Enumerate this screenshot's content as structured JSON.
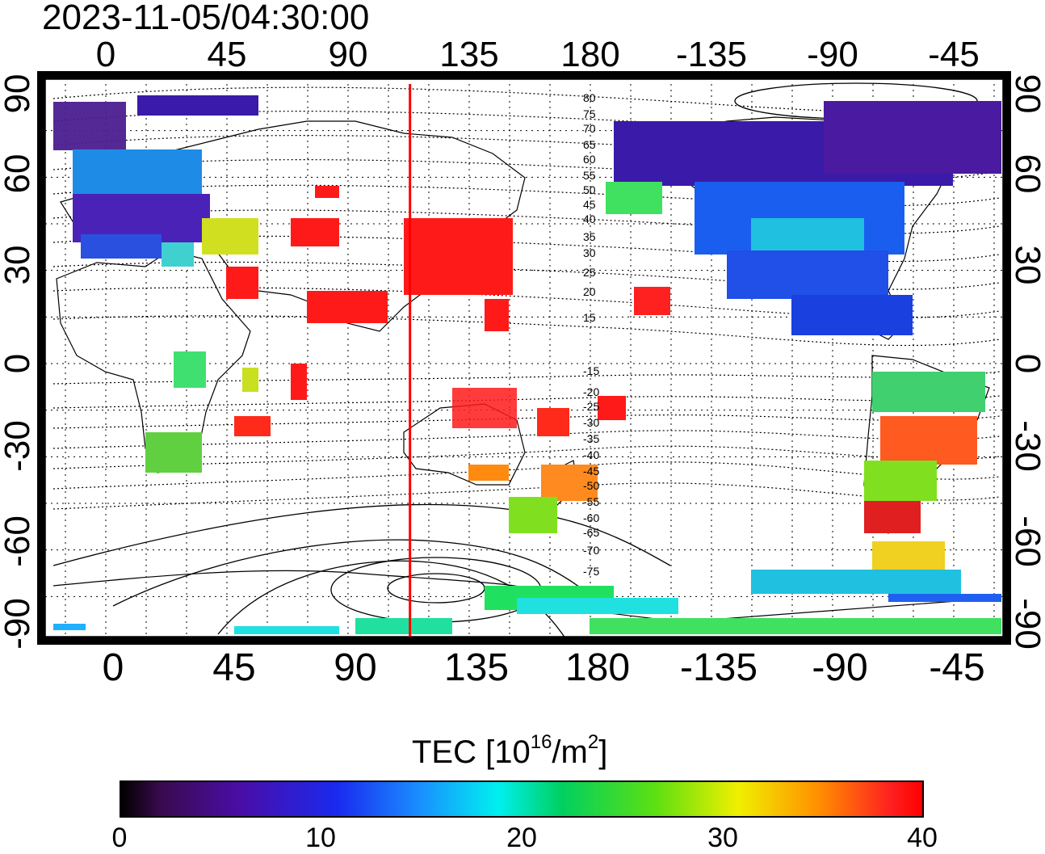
{
  "timestamp": "2023-11-05/04:30:00",
  "axes": {
    "top_lon_labels": [
      "0",
      "45",
      "90",
      "135",
      "180",
      "-135",
      "-90",
      "-45"
    ],
    "bottom_lon_labels": [
      "0",
      "45",
      "90",
      "135",
      "180",
      "-135",
      "-90",
      "-45"
    ],
    "left_lat_labels": [
      "90",
      "60",
      "30",
      "0",
      "-30",
      "-60",
      "-90"
    ],
    "right_lat_labels": [
      "90",
      "60",
      "30",
      "0",
      "-30",
      "-60",
      "-90"
    ]
  },
  "contour_labels": [
    "80",
    "75",
    "70",
    "65",
    "60",
    "55",
    "50",
    "45",
    "40",
    "35",
    "30",
    "25",
    "20",
    "15",
    "-15",
    "-20",
    "-25",
    "-30",
    "-35",
    "-40",
    "-45",
    "-50",
    "-55",
    "-60",
    "-65",
    "-70",
    "-75"
  ],
  "colorbar": {
    "title_prefix": "TEC  [10",
    "exp1": "16",
    "mid": "/m",
    "exp2": "2",
    "suffix": "]",
    "labels": [
      "0",
      "10",
      "20",
      "30",
      "40"
    ],
    "min": 0,
    "max": 40
  },
  "subsolar_line_lon": 113,
  "colors": {
    "grid": "#000000",
    "subsolar_line": "#ff0000",
    "background": "#ffffff"
  }
}
